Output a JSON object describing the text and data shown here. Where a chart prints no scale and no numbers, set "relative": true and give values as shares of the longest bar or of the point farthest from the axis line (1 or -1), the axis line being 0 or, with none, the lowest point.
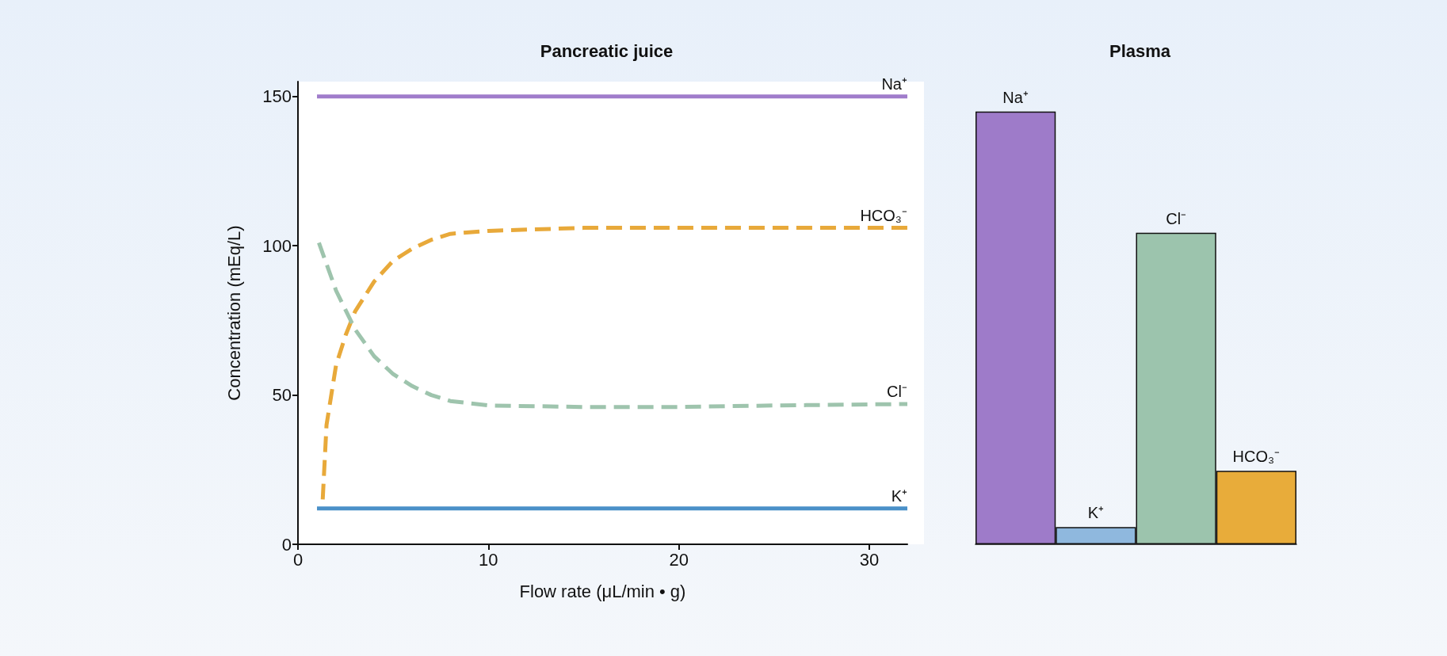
{
  "chart_data": [
    {
      "type": "line",
      "title": "Pancreatic juice",
      "xlabel": "Flow rate (μL/min • g)",
      "ylabel": "Concentration (mEq/L)",
      "xlim": [
        0,
        32
      ],
      "xticks": [
        0,
        10,
        20,
        30
      ],
      "ylim": [
        0,
        155
      ],
      "yticks": [
        0,
        50,
        100,
        150
      ],
      "grid": false,
      "legend": false,
      "marker": "none",
      "series": [
        {
          "name": "Na⁺",
          "color": "#a07ccb",
          "line_style": "solid",
          "x": [
            1,
            32
          ],
          "values": [
            150,
            150
          ]
        },
        {
          "name": "HCO₃⁻",
          "color": "#e8a93a",
          "line_style": "dashed",
          "x": [
            1.3,
            1.5,
            2,
            2.5,
            3,
            4,
            5,
            6,
            7,
            8,
            10,
            15,
            20,
            25,
            32
          ],
          "values": [
            15,
            40,
            60,
            70,
            78,
            88,
            95,
            99,
            102,
            104,
            105,
            106,
            106,
            106,
            106
          ]
        },
        {
          "name": "Cl⁻",
          "color": "#9ec4ad",
          "line_style": "dashed",
          "x": [
            1.1,
            2,
            3,
            4,
            5,
            6,
            7,
            8,
            10,
            15,
            20,
            25,
            32
          ],
          "values": [
            101,
            85,
            72,
            63,
            57,
            53,
            50,
            48,
            46.5,
            46,
            46,
            46.5,
            47
          ]
        },
        {
          "name": "K⁺",
          "color": "#4a90c8",
          "line_style": "solid",
          "x": [
            1,
            32
          ],
          "values": [
            12,
            12
          ]
        }
      ]
    },
    {
      "type": "bar",
      "title": "Plasma",
      "categories": [
        "Na⁺",
        "K⁺",
        "Cl⁻",
        "HCO₃⁻"
      ],
      "values": [
        1,
        0.04,
        0.72,
        0.17
      ],
      "relative": true,
      "colors": [
        "#9e7bc9",
        "#8fb8de",
        "#9cc4ad",
        "#e8ac3a"
      ],
      "grid": false,
      "legend": false
    }
  ]
}
